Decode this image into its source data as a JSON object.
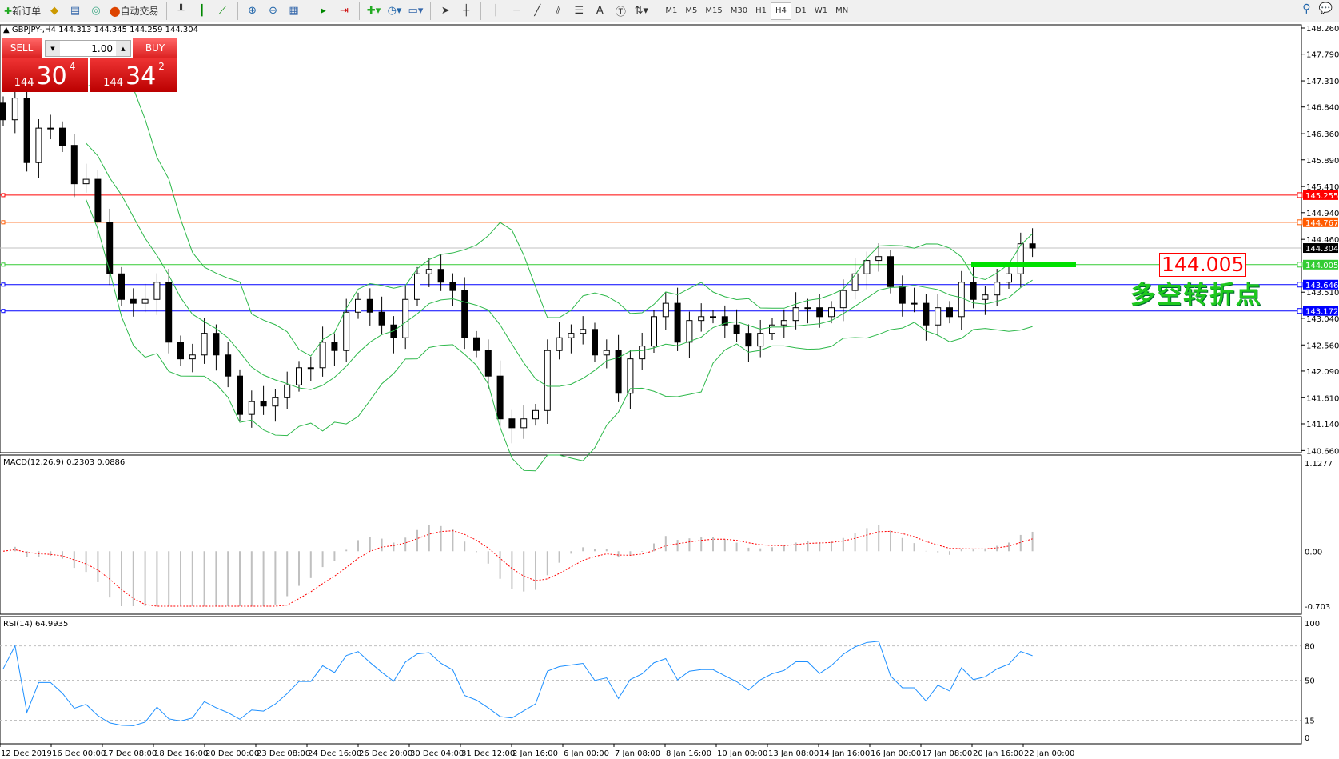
{
  "toolbar": {
    "new_order": "新订单",
    "auto_trading": "自动交易",
    "timeframes": [
      "M1",
      "M5",
      "M15",
      "M30",
      "H1",
      "H4",
      "D1",
      "W1",
      "MN"
    ],
    "active_timeframe": "H4"
  },
  "chart_header": {
    "symbol": "GBPJPY-,H4",
    "ohlc": "144.313 144.345 144.259 144.304"
  },
  "trade_panel": {
    "sell_label": "SELL",
    "buy_label": "BUY",
    "lot": "1.00",
    "sell_small": "144",
    "sell_big": "30",
    "sell_pip": "4",
    "buy_small": "144",
    "buy_big": "34",
    "buy_pip": "2"
  },
  "annotation": {
    "price_label": "144.005",
    "text": "多空转折点"
  },
  "colors": {
    "bull": "#ffffff",
    "bear": "#000000",
    "bands": "#2db84a",
    "red_line": "#ff0000",
    "orange_line": "#ff5a00",
    "green_line": "#33cc33",
    "blue_line": "#0000ff",
    "macd_signal": "#ff0000",
    "macd_hist": "#c0c0c0",
    "rsi": "#1e90ff",
    "marker": "#00e000"
  },
  "chart_data": {
    "type": "candlestick",
    "symbol": "GBPJPY",
    "timeframe": "H4",
    "closes": [
      146.61,
      147.0,
      145.84,
      146.46,
      146.46,
      146.15,
      145.46,
      145.54,
      144.77,
      143.84,
      143.38,
      143.31,
      143.38,
      143.69,
      142.61,
      142.31,
      142.38,
      142.77,
      142.38,
      142.0,
      141.31,
      141.54,
      141.46,
      141.61,
      141.84,
      142.15,
      142.15,
      142.61,
      142.46,
      143.15,
      143.38,
      143.15,
      142.92,
      142.69,
      143.38,
      143.84,
      143.92,
      143.69,
      143.54,
      142.69,
      142.46,
      142.0,
      141.23,
      141.07,
      141.23,
      141.38,
      142.46,
      142.69,
      142.77,
      142.84,
      142.38,
      142.46,
      141.69,
      142.31,
      142.54,
      143.07,
      143.31,
      142.61,
      143.0,
      143.07,
      143.07,
      142.92,
      142.77,
      142.54,
      142.77,
      142.92,
      143.0,
      143.23,
      143.23,
      143.07,
      143.23,
      143.54,
      143.84,
      144.08,
      144.15,
      143.61,
      143.31,
      143.31,
      142.92,
      143.23,
      143.07,
      143.69,
      143.38,
      143.46,
      143.69,
      143.84,
      144.38,
      144.304
    ],
    "ylim": [
      140.66,
      148.26
    ],
    "y_ticks": [
      "148.260",
      "147.790",
      "147.310",
      "146.840",
      "146.360",
      "145.890",
      "145.410",
      "144.940",
      "144.460",
      "143.510",
      "143.040",
      "142.560",
      "142.090",
      "141.610",
      "141.140",
      "140.660"
    ],
    "x_ticks": [
      "12 Dec 2019",
      "16 Dec 00:00",
      "17 Dec 08:00",
      "18 Dec 16:00",
      "20 Dec 00:00",
      "23 Dec 08:00",
      "24 Dec 16:00",
      "26 Dec 20:00",
      "30 Dec 04:00",
      "31 Dec 12:00",
      "2 Jan 16:00",
      "6 Jan 00:00",
      "7 Jan 08:00",
      "8 Jan 16:00",
      "10 Jan 00:00",
      "13 Jan 08:00",
      "14 Jan 16:00",
      "16 Jan 00:00",
      "17 Jan 08:00",
      "20 Jan 16:00",
      "22 Jan 00:00"
    ],
    "hlines": [
      {
        "price": "145.255",
        "color": "#ff0000"
      },
      {
        "price": "144.767",
        "color": "#ff5a00"
      },
      {
        "price": "144.304",
        "color": "#000000",
        "current": true
      },
      {
        "price": "144.005",
        "color": "#33cc33"
      },
      {
        "price": "143.646",
        "color": "#0000ff"
      },
      {
        "price": "143.172",
        "color": "#0000ff"
      }
    ],
    "bollinger": true,
    "macd": {
      "label": "MACD(12,26,9) 0.2303 0.0886",
      "ylim": [
        -0.703,
        1.1277
      ],
      "y_ticks": [
        "1.1277",
        "0.00",
        "-0.703"
      ]
    },
    "rsi": {
      "label": "RSI(14) 64.9935",
      "ylim": [
        0,
        100
      ],
      "levels": [
        80,
        50,
        15
      ],
      "y_ticks": [
        "100",
        "80",
        "50",
        "15",
        "0"
      ]
    }
  }
}
